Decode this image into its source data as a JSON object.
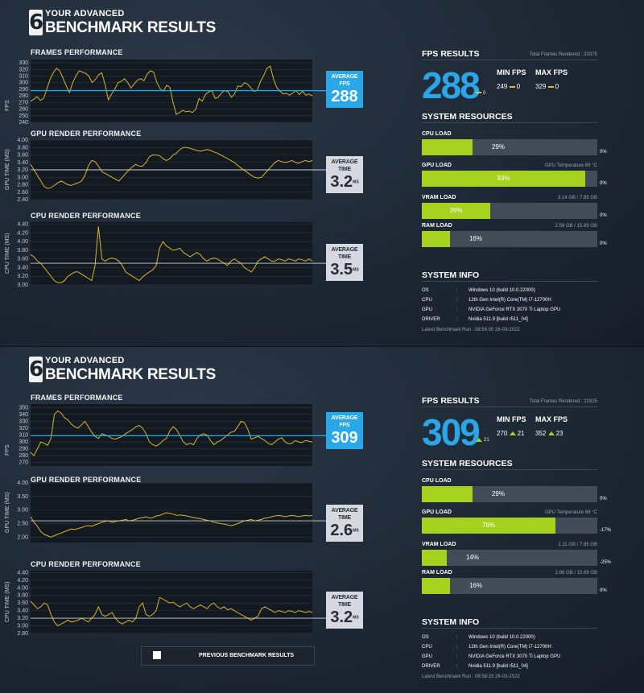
{
  "panels": [
    {
      "header": {
        "logo_glyph": "6",
        "subtitle": "YOUR ADVANCED",
        "title": "BENCHMARK RESULTS"
      },
      "frames": {
        "title": "FRAMES PERFORMANCE",
        "ylabel": "FPS",
        "avg_label": "AVERAGE FPS",
        "avg_value": "288",
        "avg_unit": ""
      },
      "gpu": {
        "title": "GPU RENDER PERFORMANCE",
        "ylabel": "GPU TIME (MS)",
        "avg_label": "AVERAGE TIME",
        "avg_value": "3.2",
        "avg_unit": "MS"
      },
      "cpu": {
        "title": "CPU RENDER PERFORMANCE",
        "ylabel": "CPU TIME (MS)",
        "avg_label": "AVERAGE TIME",
        "avg_value": "3.5",
        "avg_unit": "MS"
      },
      "fps_results": {
        "title": "FPS RESULTS",
        "total_frames": "Total Frames Rendered : 20375",
        "fps": "288",
        "fps_delta": "0",
        "fps_delta_kind": "none",
        "min_label": "MIN FPS",
        "min_value": "249",
        "min_delta": "0",
        "min_delta_kind": "none",
        "max_label": "MAX FPS",
        "max_value": "329",
        "max_delta": "0",
        "max_delta_kind": "none"
      },
      "system_resources": {
        "title": "SYSTEM RESOURCES",
        "items": [
          {
            "label": "CPU LOAD",
            "percent": 29,
            "percent_text": "29%",
            "right_info": "",
            "delta": "0%"
          },
          {
            "label": "GPU LOAD",
            "percent": 93,
            "percent_text": "93%",
            "right_info": "GPU Temperature 65 °C",
            "delta": "0%"
          },
          {
            "label": "VRAM LOAD",
            "percent": 39,
            "percent_text": "39%",
            "right_info": "3.14 GB / 7.85 GB",
            "delta": "0%"
          },
          {
            "label": "RAM LOAD",
            "percent": 16,
            "percent_text": "16%",
            "right_info": "2.58 GB / 15.69 GB",
            "delta": "0%"
          }
        ]
      },
      "system_info": {
        "title": "SYSTEM INFO",
        "rows": [
          {
            "key": "OS",
            "sep": ":",
            "value": "Windows 10 (build 10.0.22000)"
          },
          {
            "key": "CPU",
            "sep": ":",
            "value": "12th Gen Intel(R) Core(TM) i7-12700H"
          },
          {
            "key": "GPU",
            "sep": ":",
            "value": "NVIDIA GeForce RTX 3070 Ti Laptop GPU"
          },
          {
            "key": "DRIVER",
            "sep": ":",
            "value": "Nvidia 511.9 [build r511_04]"
          }
        ],
        "latest_run": "Latest Benchmark Run : 08:56:00 26-03-2022"
      },
      "previous_button": ""
    },
    {
      "header": {
        "logo_glyph": "6",
        "subtitle": "YOUR ADVANCED",
        "title": "BENCHMARK RESULTS"
      },
      "frames": {
        "title": "FRAMES PERFORMANCE",
        "ylabel": "FPS",
        "avg_label": "AVERAGE FPS",
        "avg_value": "309",
        "avg_unit": ""
      },
      "gpu": {
        "title": "GPU RENDER PERFORMANCE",
        "ylabel": "GPU TIME (MS)",
        "avg_label": "AVERAGE TIME",
        "avg_value": "2.6",
        "avg_unit": "MS"
      },
      "cpu": {
        "title": "CPU RENDER PERFORMANCE",
        "ylabel": "CPU TIME (MS)",
        "avg_label": "AVERAGE TIME",
        "avg_value": "3.2",
        "avg_unit": "MS"
      },
      "fps_results": {
        "title": "FPS RESULTS",
        "total_frames": "Total Frames Rendered : 21915",
        "fps": "309",
        "fps_delta": "21",
        "fps_delta_kind": "up",
        "min_label": "MIN FPS",
        "min_value": "270",
        "min_delta": "21",
        "min_delta_kind": "up",
        "max_label": "MAX FPS",
        "max_value": "352",
        "max_delta": "23",
        "max_delta_kind": "up"
      },
      "system_resources": {
        "title": "SYSTEM RESOURCES",
        "items": [
          {
            "label": "CPU LOAD",
            "percent": 29,
            "percent_text": "29%",
            "right_info": "",
            "delta": "0%"
          },
          {
            "label": "GPU LOAD",
            "percent": 76,
            "percent_text": "76%",
            "right_info": "GPU Temperature 68 °C",
            "delta": "-17%"
          },
          {
            "label": "VRAM LOAD",
            "percent": 14,
            "percent_text": "14%",
            "right_info": "1.11 GB / 7.85 GB",
            "delta": "-25%"
          },
          {
            "label": "RAM LOAD",
            "percent": 16,
            "percent_text": "16%",
            "right_info": "2.66 GB / 15.69 GB",
            "delta": "0%"
          }
        ]
      },
      "system_info": {
        "title": "SYSTEM INFO",
        "rows": [
          {
            "key": "OS",
            "sep": ":",
            "value": "Windows 10 (build 10.0.22000)"
          },
          {
            "key": "CPU",
            "sep": ":",
            "value": "12th Gen Intel(R) Core(TM) i7-12700H"
          },
          {
            "key": "GPU",
            "sep": ":",
            "value": "NVIDIA GeForce RTX 3070 Ti Laptop GPU"
          },
          {
            "key": "DRIVER",
            "sep": ":",
            "value": "Nvidia 511.9 [build r511_04]"
          }
        ],
        "latest_run": "Latest Benchmark Run : 08:58:15 26-03-2022"
      },
      "previous_button": "PREVIOUS BENCHMARK RESULTS"
    }
  ],
  "colors": {
    "accent_blue": "#28a8e8",
    "load_green": "#a7d11f",
    "trace_yellow": "#d9b52a",
    "bar_track": "#424b58",
    "chart_bg": "#131920"
  },
  "chart_data": [
    {
      "type": "line",
      "id": "p0-frames",
      "title": "FRAMES PERFORMANCE",
      "ylabel": "FPS",
      "yticks": [
        240,
        250,
        260,
        270,
        280,
        290,
        300,
        310,
        320,
        330
      ],
      "ylim": [
        240,
        335
      ],
      "avg": 288,
      "series": [
        {
          "values": [
            272,
            275,
            279,
            273,
            276,
            290,
            305,
            315,
            322,
            318,
            307,
            295,
            285,
            300,
            310,
            318,
            316,
            314,
            310,
            300,
            305,
            312,
            315,
            297,
            274,
            283,
            290,
            300,
            302,
            306,
            300,
            292,
            298,
            304,
            306,
            303,
            313,
            318,
            316,
            300,
            291,
            287,
            296,
            293,
            270,
            252,
            255,
            258,
            256,
            257,
            255,
            260,
            276,
            272,
            282,
            286,
            288,
            276,
            278,
            285,
            288,
            286,
            278,
            283,
            295,
            294,
            300,
            298,
            292,
            287,
            288,
            302,
            311,
            322,
            325,
            306,
            293,
            287,
            283,
            284,
            281,
            285,
            288,
            282,
            287,
            281,
            283,
            280
          ]
        }
      ]
    },
    {
      "type": "line",
      "id": "p0-gpu",
      "title": "GPU RENDER PERFORMANCE",
      "ylabel": "GPU TIME (MS)",
      "yticks": [
        2.4,
        2.6,
        2.8,
        3.0,
        3.2,
        3.4,
        3.6,
        3.8,
        4.0
      ],
      "ylim": [
        2.4,
        4.0
      ],
      "avg": 3.2,
      "series": [
        {
          "values": [
            3.35,
            3.2,
            3.05,
            2.9,
            2.75,
            2.7,
            2.72,
            2.78,
            2.85,
            2.9,
            2.85,
            2.8,
            2.78,
            2.82,
            2.85,
            2.9,
            3.05,
            3.3,
            3.45,
            3.42,
            3.3,
            3.15,
            3.1,
            3.05,
            3.0,
            2.95,
            2.9,
            3.0,
            3.1,
            3.2,
            3.28,
            3.35,
            3.3,
            3.3,
            3.4,
            3.55,
            3.6,
            3.6,
            3.58,
            3.5,
            3.45,
            3.5,
            3.6,
            3.65,
            3.75,
            3.8,
            3.8,
            3.78,
            3.75,
            3.72,
            3.7,
            3.72,
            3.75,
            3.72,
            3.68,
            3.65,
            3.6,
            3.55,
            3.5,
            3.45,
            3.4,
            3.32,
            3.25,
            3.18,
            3.12,
            3.05,
            3.0,
            2.98,
            3.0,
            3.1,
            3.2,
            3.3,
            3.4,
            3.45,
            3.42,
            3.4,
            3.42,
            3.45,
            3.4,
            3.38,
            3.42,
            3.45,
            3.42,
            3.45
          ]
        }
      ]
    },
    {
      "type": "line",
      "id": "p0-cpu",
      "title": "CPU RENDER PERFORMANCE",
      "ylabel": "CPU TIME (MS)",
      "yticks": [
        3.0,
        3.2,
        3.4,
        3.6,
        3.8,
        4.0,
        4.2,
        4.4
      ],
      "ylim": [
        3.0,
        4.45
      ],
      "avg": 3.5,
      "series": [
        {
          "values": [
            3.7,
            3.65,
            3.55,
            3.5,
            3.4,
            3.3,
            3.2,
            3.1,
            3.05,
            3.05,
            3.1,
            3.2,
            3.25,
            3.3,
            3.3,
            3.25,
            3.2,
            3.15,
            3.1,
            3.45,
            4.35,
            3.6,
            3.55,
            3.6,
            3.62,
            3.6,
            3.55,
            3.45,
            3.3,
            3.25,
            3.2,
            3.15,
            3.1,
            3.18,
            3.25,
            3.3,
            3.35,
            3.45,
            3.85,
            4.0,
            3.9,
            3.85,
            3.8,
            3.82,
            3.85,
            3.75,
            3.7,
            3.65,
            3.7,
            3.75,
            3.7,
            3.6,
            3.55,
            3.6,
            3.62,
            3.6,
            3.55,
            3.5,
            3.45,
            3.55,
            3.6,
            3.55,
            3.5,
            3.4,
            3.35,
            3.3,
            3.4,
            3.55,
            3.6,
            3.65,
            3.6,
            3.55,
            3.55,
            3.6,
            3.58,
            3.55,
            3.6,
            3.58,
            3.55,
            3.6,
            3.58,
            3.55,
            3.6,
            3.55
          ]
        }
      ]
    },
    {
      "type": "line",
      "id": "p1-frames",
      "title": "FRAMES PERFORMANCE",
      "ylabel": "FPS",
      "yticks": [
        270,
        280,
        290,
        300,
        310,
        320,
        330,
        340,
        350
      ],
      "ylim": [
        265,
        355
      ],
      "avg": 309,
      "series": [
        {
          "values": [
            285,
            280,
            290,
            300,
            298,
            295,
            305,
            340,
            345,
            342,
            335,
            332,
            326,
            322,
            320,
            325,
            330,
            322,
            314,
            308,
            305,
            312,
            310,
            308,
            305,
            304,
            306,
            308,
            312,
            315,
            318,
            322,
            324,
            320,
            312,
            300,
            296,
            294,
            297,
            302,
            305,
            316,
            322,
            318,
            309,
            300,
            296,
            298,
            296,
            305,
            310,
            312,
            310,
            302,
            296,
            300,
            302,
            306,
            310,
            314,
            315,
            322,
            330,
            328,
            318,
            304,
            306,
            308,
            305,
            302,
            298,
            296,
            300,
            304,
            306,
            300,
            297,
            298,
            302,
            300,
            299,
            302,
            301,
            300
          ]
        }
      ]
    },
    {
      "type": "line",
      "id": "p1-gpu",
      "title": "GPU RENDER PERFORMANCE",
      "ylabel": "GPU TIME (MS)",
      "yticks": [
        2.0,
        2.5,
        3.0,
        3.5,
        4.0
      ],
      "ylim": [
        1.8,
        4.0
      ],
      "avg": 2.6,
      "series": [
        {
          "values": [
            2.75,
            2.55,
            2.4,
            2.2,
            2.1,
            2.05,
            2.0,
            2.05,
            2.1,
            2.15,
            2.2,
            2.25,
            2.3,
            2.28,
            2.32,
            2.35,
            2.4,
            2.42,
            2.4,
            2.45,
            2.5,
            2.55,
            2.58,
            2.6,
            2.55,
            2.58,
            2.6,
            2.62,
            2.65,
            2.6,
            2.62,
            2.65,
            2.7,
            2.72,
            2.75,
            2.7,
            2.72,
            2.78,
            2.8,
            2.85,
            2.9,
            2.88,
            2.85,
            2.8,
            2.82,
            2.8,
            2.78,
            2.75,
            2.72,
            2.7,
            2.68,
            2.65,
            2.62,
            2.6,
            2.55,
            2.52,
            2.5,
            2.48,
            2.45,
            2.42,
            2.45,
            2.5,
            2.55,
            2.6,
            2.62,
            2.65,
            2.6,
            2.62,
            2.65,
            2.7,
            2.72,
            2.75,
            2.78,
            2.8,
            2.78,
            2.75,
            2.78,
            2.8,
            2.78,
            2.75,
            2.78,
            2.8,
            2.78,
            2.8
          ]
        }
      ]
    },
    {
      "type": "line",
      "id": "p1-cpu",
      "title": "CPU RENDER PERFORMANCE",
      "ylabel": "CPU TIME (MS)",
      "yticks": [
        2.8,
        3.0,
        3.2,
        3.4,
        3.6,
        3.8,
        4.0,
        4.2,
        4.4
      ],
      "ylim": [
        2.8,
        4.45
      ],
      "avg": 3.2,
      "series": [
        {
          "values": [
            3.65,
            3.55,
            3.45,
            3.5,
            3.6,
            3.55,
            3.3,
            3.1,
            3.0,
            3.05,
            3.1,
            3.15,
            3.1,
            3.12,
            3.15,
            3.2,
            3.15,
            3.1,
            3.2,
            3.3,
            3.5,
            3.3,
            3.25,
            3.3,
            3.35,
            3.2,
            3.1,
            3.05,
            3.1,
            3.15,
            3.1,
            3.2,
            3.5,
            3.6,
            3.3,
            3.25,
            3.3,
            3.4,
            3.75,
            3.7,
            3.65,
            3.6,
            3.62,
            3.55,
            3.5,
            3.55,
            3.6,
            3.5,
            3.45,
            3.5,
            3.55,
            3.5,
            3.45,
            3.55,
            3.6,
            3.5,
            3.45,
            3.5,
            3.42,
            3.45,
            3.4,
            3.35,
            3.3,
            3.25,
            3.2,
            3.15,
            3.2,
            3.25,
            3.45,
            3.5,
            3.45,
            3.4,
            3.35,
            3.4,
            3.38,
            3.35,
            3.4,
            3.38,
            3.35,
            3.4,
            3.38,
            3.35,
            3.38,
            3.35
          ]
        }
      ]
    }
  ]
}
